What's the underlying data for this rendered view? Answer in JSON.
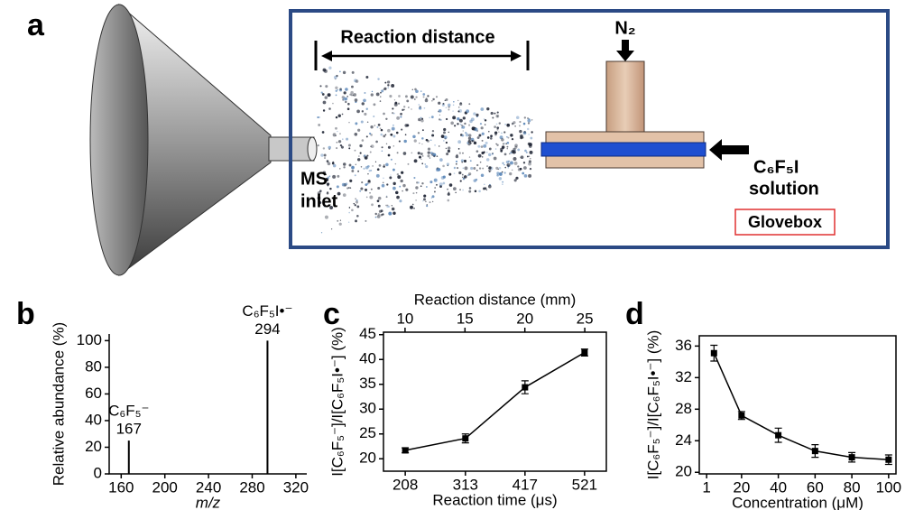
{
  "panel_a": {
    "label": "a",
    "reaction_distance": "Reaction distance",
    "gas": "N₂",
    "reagent": "C₆F₅I",
    "reagent_state": "solution",
    "inlet_1": "MS",
    "inlet_2": "inlet",
    "enclosure": "Glovebox"
  },
  "chart_data": [
    {
      "type": "stem",
      "panel": "b",
      "x": [
        167,
        294
      ],
      "values": [
        25,
        100
      ],
      "peak_labels": [
        "C₆F₅⁻",
        "C₆F₅I•⁻"
      ],
      "color": "#000000",
      "xlabel": "m/z",
      "ylabel": "Relative abundance (%)",
      "xlim": [
        149,
        330
      ],
      "xticks": [
        160,
        200,
        240,
        280,
        320
      ],
      "ylim": [
        0,
        105
      ],
      "yticks": [
        0,
        20,
        40,
        60,
        80,
        100
      ]
    },
    {
      "type": "line",
      "panel": "c",
      "x": [
        208,
        313,
        417,
        521
      ],
      "values": [
        21.7,
        24.1,
        34.4,
        41.4
      ],
      "errors": [
        0.5,
        0.9,
        1.3,
        0.7
      ],
      "color": "#000000",
      "xlabel": "Reaction time (μs)",
      "x2label": "Reaction distance (mm)",
      "ylabel": "I[C₆F₅⁻]/I[C₆F₅I•⁻] (%)",
      "xlim": [
        170,
        559
      ],
      "xticks": [
        208,
        313,
        417,
        521
      ],
      "x2lim": [
        8.2,
        26.8
      ],
      "x2ticks": [
        10,
        15,
        20,
        25
      ],
      "ylim": [
        17.5,
        45.5
      ],
      "yticks": [
        20,
        25,
        30,
        35,
        40,
        45
      ]
    },
    {
      "type": "line",
      "panel": "d",
      "x": [
        5,
        20,
        40,
        60,
        80,
        100
      ],
      "values": [
        35.1,
        27.2,
        24.7,
        22.7,
        21.9,
        21.6
      ],
      "errors": [
        1.0,
        0.5,
        0.9,
        0.8,
        0.6,
        0.6
      ],
      "color": "#000000",
      "xlabel": "Concentration (μM)",
      "ylabel": "I[C₆F₅⁻]/I[C₆F₅I•⁻] (%)",
      "xlim": [
        -3,
        104
      ],
      "xticks": [
        1,
        20,
        40,
        60,
        80,
        100
      ],
      "ylim": [
        19.8,
        37.3
      ],
      "yticks": [
        20,
        24,
        28,
        32,
        36
      ]
    }
  ]
}
